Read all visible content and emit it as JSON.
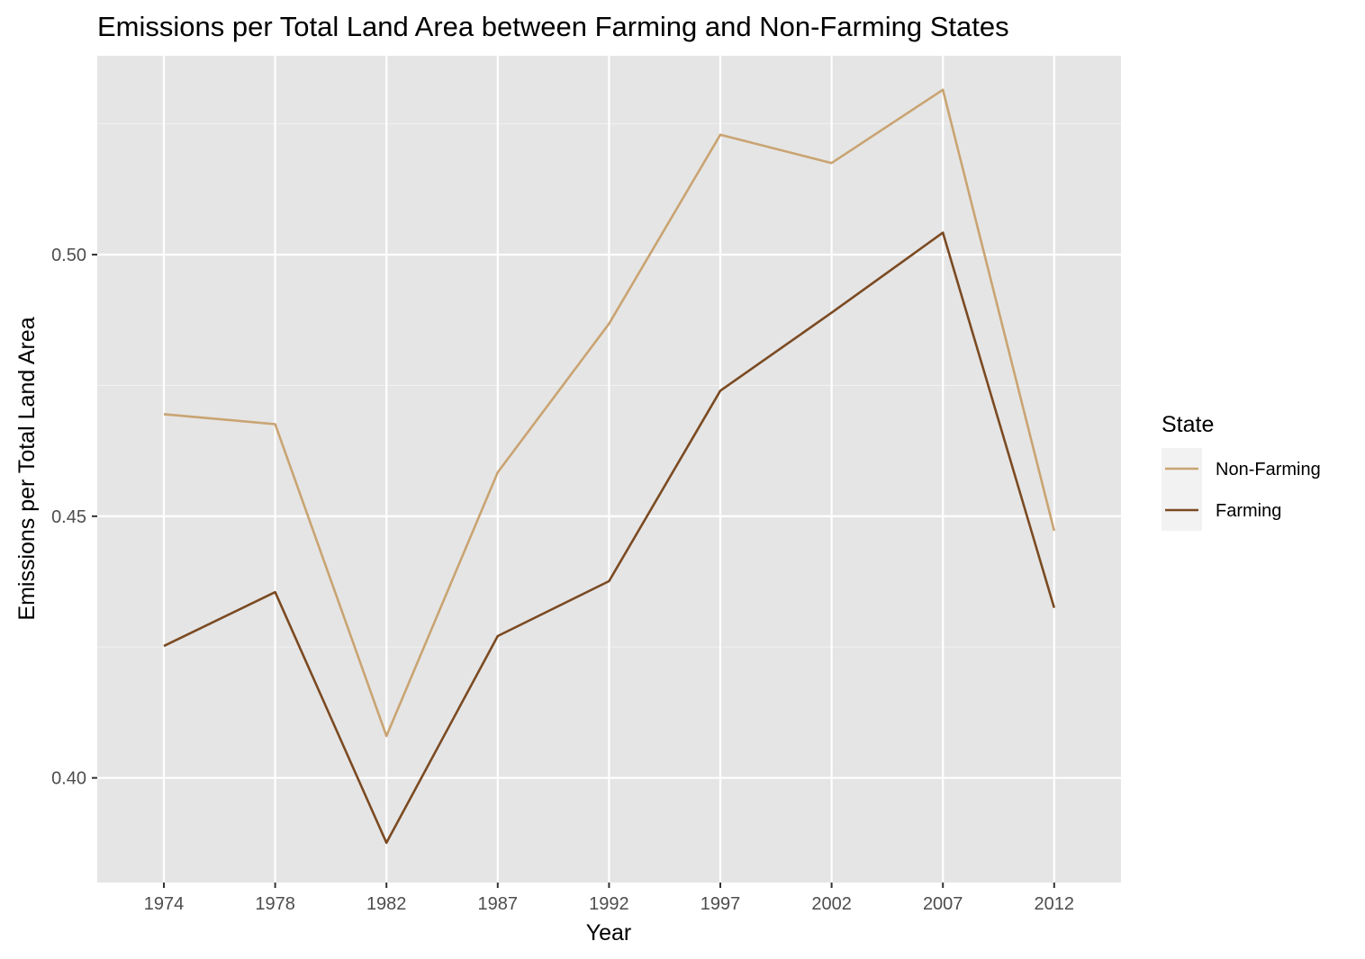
{
  "chart_data": {
    "type": "line",
    "title": "Emissions per Total Land Area between Farming and Non-Farming States",
    "xlabel": "Year",
    "ylabel": "Emissions per Total Land Area",
    "categories": [
      "1974",
      "1978",
      "1982",
      "1987",
      "1992",
      "1997",
      "2002",
      "2007",
      "2012"
    ],
    "ylim": [
      0.38,
      0.538
    ],
    "yticks": [
      0.4,
      0.45,
      0.5
    ],
    "ytick_labels": [
      "0.40",
      "0.45",
      "0.50"
    ],
    "grid": true,
    "legend": {
      "title": "State",
      "position": "right"
    },
    "series": [
      {
        "name": "Non-Farming",
        "color": "#c9a472",
        "values": [
          0.4695,
          0.4676,
          0.408,
          0.4584,
          0.4868,
          0.5229,
          0.5175,
          0.5315,
          0.4472
        ]
      },
      {
        "name": "Farming",
        "color": "#7b4a22",
        "values": [
          0.4252,
          0.4355,
          0.3876,
          0.4271,
          0.4376,
          0.474,
          0.4889,
          0.5042,
          0.4325
        ]
      }
    ]
  }
}
